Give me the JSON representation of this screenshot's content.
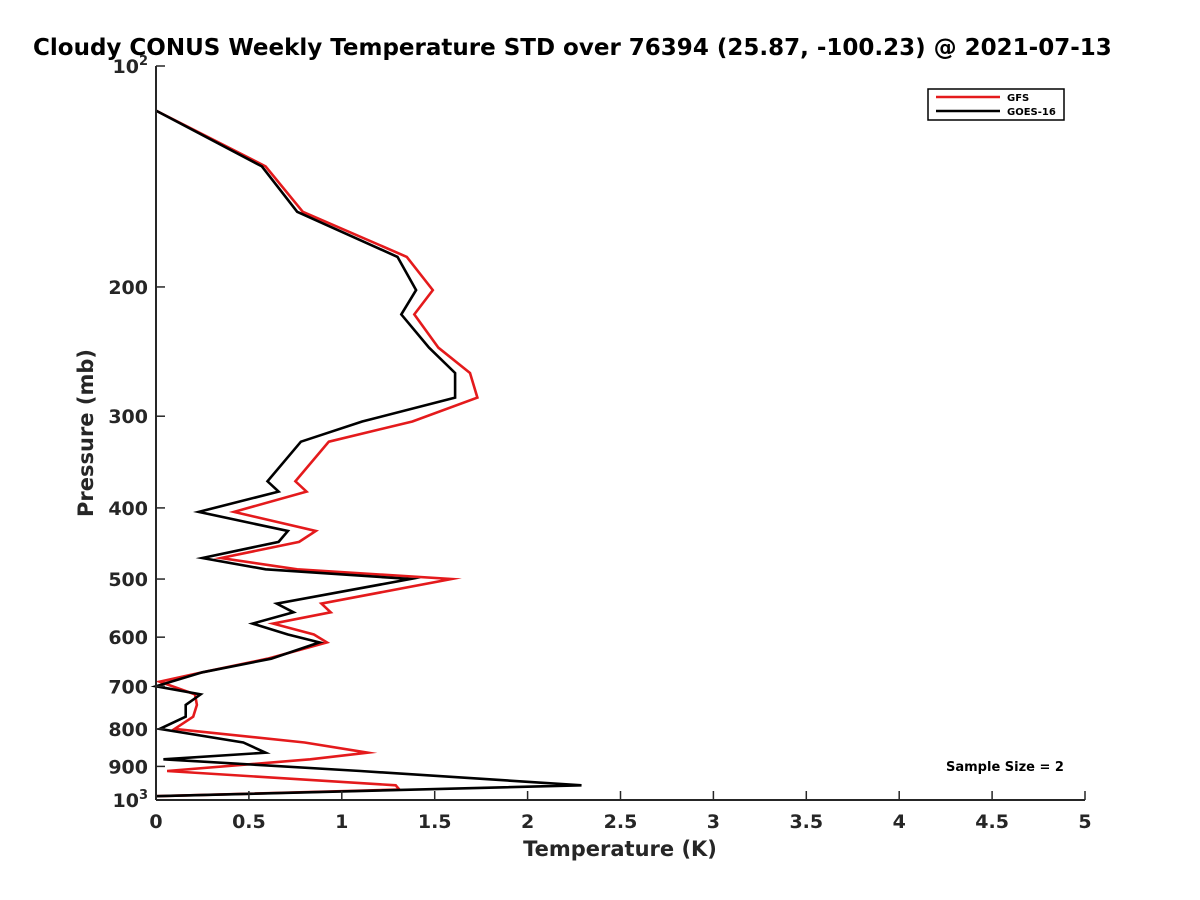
{
  "chart_data": {
    "type": "line",
    "title": "Cloudy CONUS Weekly Temperature STD over 76394 (25.87, -100.23) @ 2021-07-13",
    "xlabel": "Temperature (K)",
    "ylabel": "Pressure (mb)",
    "xlim": [
      0,
      5
    ],
    "ylim": [
      100,
      1000
    ],
    "y_scale": "log",
    "y_reversed": true,
    "x_ticks": [
      "0",
      "0.5",
      "1",
      "1.5",
      "2",
      "2.5",
      "3",
      "3.5",
      "4",
      "4.5",
      "5"
    ],
    "y_ticks": [
      {
        "value": 100,
        "label": "10",
        "sup": "2"
      },
      {
        "value": 200,
        "label": "200"
      },
      {
        "value": 300,
        "label": "300"
      },
      {
        "value": 400,
        "label": "400"
      },
      {
        "value": 500,
        "label": "500"
      },
      {
        "value": 600,
        "label": "600"
      },
      {
        "value": 700,
        "label": "700"
      },
      {
        "value": 800,
        "label": "800"
      },
      {
        "value": 900,
        "label": "900"
      },
      {
        "value": 1000,
        "label": "10",
        "sup": "3"
      }
    ],
    "grid": false,
    "legend_position": "top-right",
    "annotation": "Sample Size = 2",
    "series": [
      {
        "name": "GFS",
        "color": "#e41a1c",
        "points": [
          [
            0.0,
            115
          ],
          [
            0.59,
            137
          ],
          [
            0.79,
            158
          ],
          [
            1.35,
            182
          ],
          [
            1.49,
            202
          ],
          [
            1.39,
            218
          ],
          [
            1.52,
            242
          ],
          [
            1.69,
            262
          ],
          [
            1.73,
            283
          ],
          [
            1.38,
            305
          ],
          [
            0.93,
            325
          ],
          [
            0.75,
            368
          ],
          [
            0.81,
            380
          ],
          [
            0.42,
            405
          ],
          [
            0.86,
            430
          ],
          [
            0.77,
            445
          ],
          [
            0.35,
            468
          ],
          [
            0.76,
            485
          ],
          [
            1.59,
            500
          ],
          [
            0.89,
            540
          ],
          [
            0.94,
            555
          ],
          [
            0.63,
            575
          ],
          [
            0.85,
            595
          ],
          [
            0.92,
            610
          ],
          [
            0.6,
            642
          ],
          [
            0.25,
            670
          ],
          [
            0.02,
            690
          ],
          [
            0.21,
            718
          ],
          [
            0.22,
            742
          ],
          [
            0.2,
            770
          ],
          [
            0.1,
            800
          ],
          [
            0.8,
            835
          ],
          [
            1.14,
            862
          ],
          [
            0.83,
            880
          ],
          [
            0.06,
            913
          ],
          [
            1.29,
            955
          ],
          [
            1.31,
            968
          ],
          [
            0.0,
            988
          ]
        ]
      },
      {
        "name": "GOES-16",
        "color": "#000000",
        "points": [
          [
            0.0,
            115
          ],
          [
            0.57,
            137
          ],
          [
            0.76,
            158
          ],
          [
            1.3,
            182
          ],
          [
            1.4,
            202
          ],
          [
            1.32,
            218
          ],
          [
            1.47,
            242
          ],
          [
            1.61,
            262
          ],
          [
            1.61,
            283
          ],
          [
            1.11,
            305
          ],
          [
            0.78,
            325
          ],
          [
            0.6,
            368
          ],
          [
            0.66,
            380
          ],
          [
            0.23,
            405
          ],
          [
            0.71,
            430
          ],
          [
            0.66,
            445
          ],
          [
            0.25,
            468
          ],
          [
            0.59,
            485
          ],
          [
            1.37,
            500
          ],
          [
            0.65,
            540
          ],
          [
            0.74,
            555
          ],
          [
            0.52,
            575
          ],
          [
            0.71,
            595
          ],
          [
            0.88,
            610
          ],
          [
            0.62,
            642
          ],
          [
            0.25,
            670
          ],
          [
            0.0,
            700
          ],
          [
            0.24,
            718
          ],
          [
            0.16,
            742
          ],
          [
            0.16,
            770
          ],
          [
            0.02,
            800
          ],
          [
            0.47,
            835
          ],
          [
            0.59,
            862
          ],
          [
            0.04,
            880
          ],
          [
            1.1,
            913
          ],
          [
            2.29,
            955
          ],
          [
            0.0,
            988
          ]
        ]
      }
    ]
  }
}
